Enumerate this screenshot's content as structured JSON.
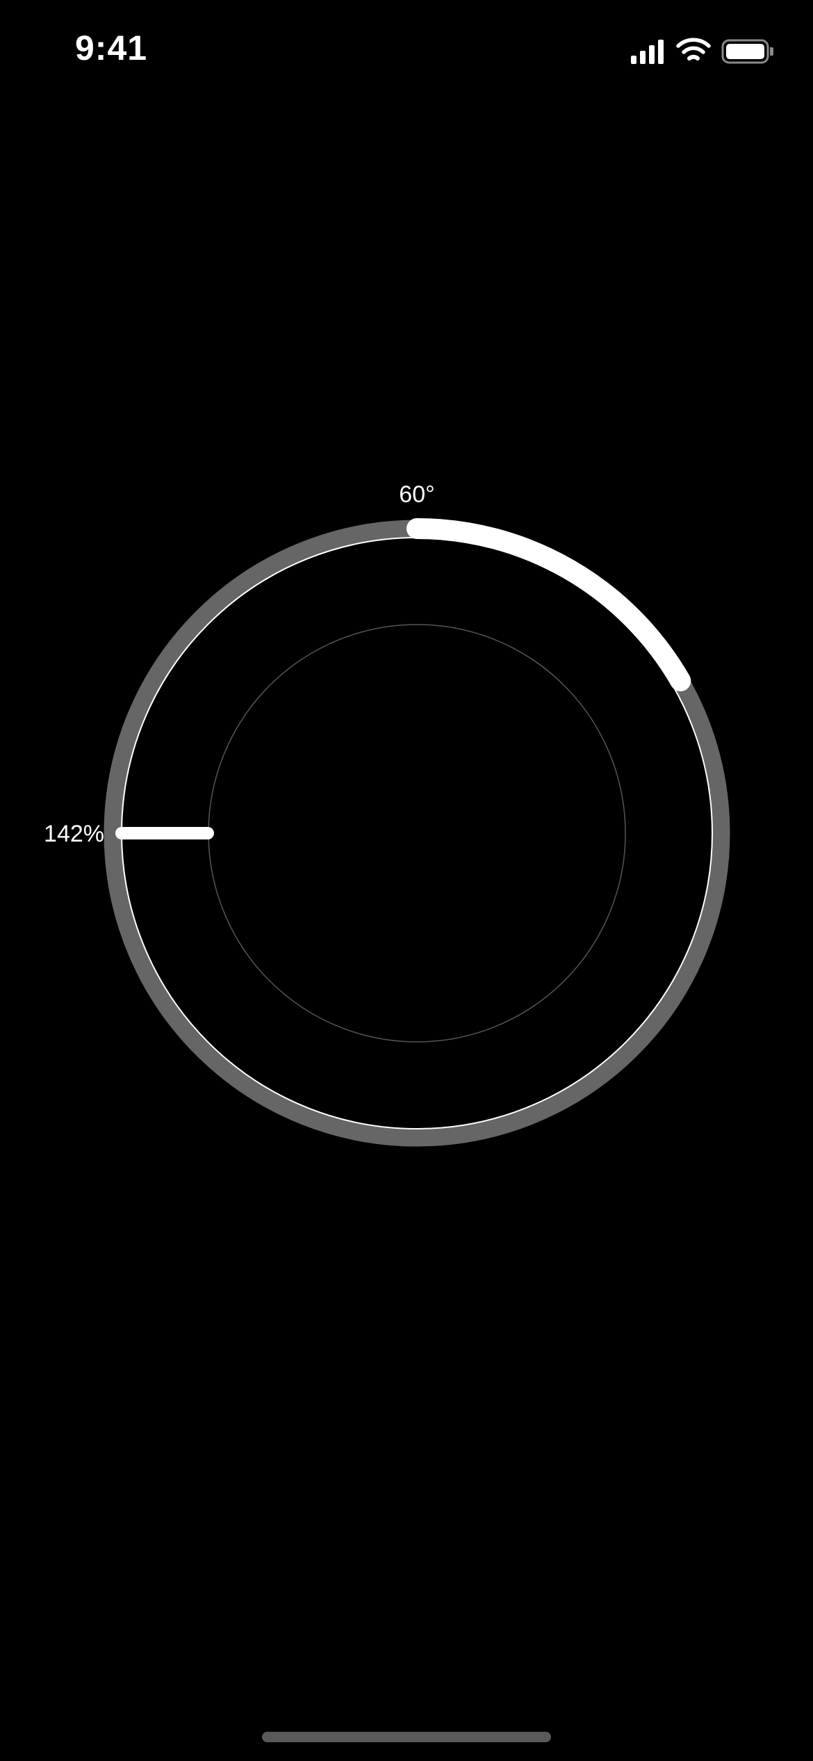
{
  "status_bar": {
    "time": "9:41",
    "icons": [
      "cellular-signal-icon",
      "wifi-icon",
      "battery-icon"
    ]
  },
  "dial": {
    "angle_label": "60°",
    "percent_label": "142%",
    "angle_degrees": 60,
    "colors": {
      "background": "#000000",
      "outer_ring": "#666666",
      "track_line": "#ffffff",
      "progress_arc": "#ffffff",
      "inner_circle": "#555555",
      "indicator": "#ffffff"
    }
  },
  "home_indicator": {
    "color": "#5a5a5a"
  }
}
